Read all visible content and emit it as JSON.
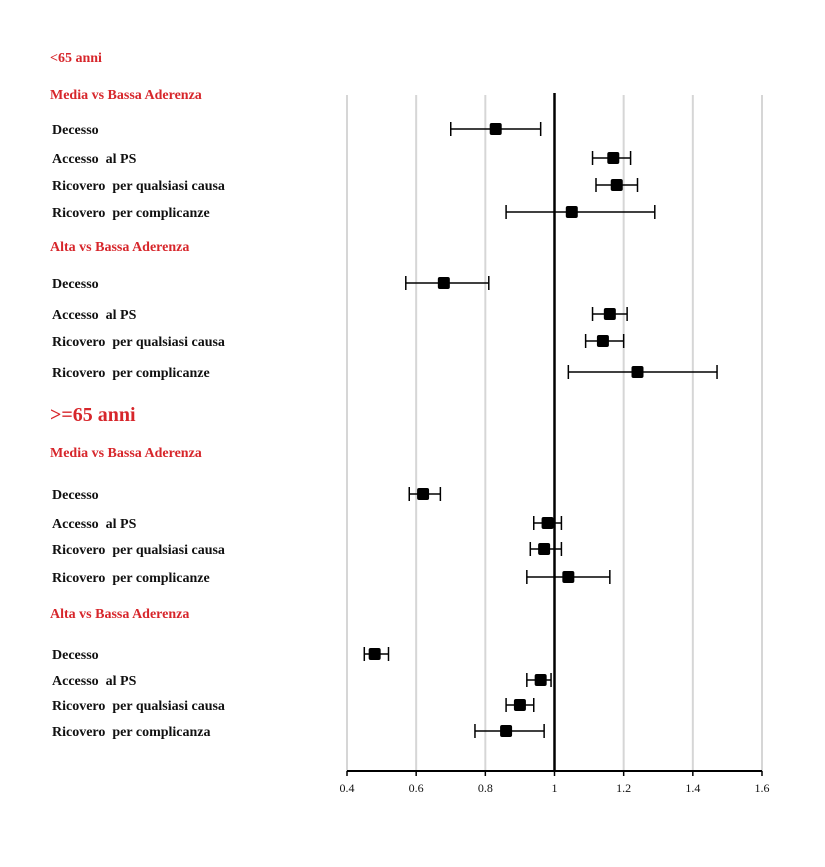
{
  "chart_data": {
    "type": "forest",
    "x_axis": {
      "xlim": [
        0.4,
        1.6
      ],
      "ticks": [
        0.4,
        0.6,
        0.8,
        1,
        1.2,
        1.4,
        1.6
      ],
      "tick_labels": [
        "0.4",
        "0.6",
        "0.8",
        "1",
        "1.2",
        "1.4",
        "1.6"
      ],
      "reference_line": 1,
      "grid": true
    },
    "sections": [
      {
        "age_label": "<65 anni",
        "groups": [
          {
            "label": "Media vs Bassa Aderenza",
            "rows": [
              {
                "label": "Decesso",
                "estimate": 0.83,
                "ci_low": 0.7,
                "ci_high": 0.96
              },
              {
                "label": "Accesso  al PS",
                "estimate": 1.17,
                "ci_low": 1.11,
                "ci_high": 1.22
              },
              {
                "label": "Ricovero  per qualsiasi causa",
                "estimate": 1.18,
                "ci_low": 1.12,
                "ci_high": 1.24
              },
              {
                "label": "Ricovero  per complicanze",
                "estimate": 1.05,
                "ci_low": 0.86,
                "ci_high": 1.29
              }
            ]
          },
          {
            "label": "Alta vs Bassa Aderenza",
            "rows": [
              {
                "label": "Decesso",
                "estimate": 0.68,
                "ci_low": 0.57,
                "ci_high": 0.81
              },
              {
                "label": "Accesso  al PS",
                "estimate": 1.16,
                "ci_low": 1.11,
                "ci_high": 1.21
              },
              {
                "label": "Ricovero  per qualsiasi causa",
                "estimate": 1.14,
                "ci_low": 1.09,
                "ci_high": 1.2
              },
              {
                "label": "Ricovero  per complicanze",
                "estimate": 1.24,
                "ci_low": 1.04,
                "ci_high": 1.47
              }
            ]
          }
        ]
      },
      {
        "age_label": ">=65 anni",
        "groups": [
          {
            "label": "Media vs Bassa Aderenza",
            "rows": [
              {
                "label": "Decesso",
                "estimate": 0.62,
                "ci_low": 0.58,
                "ci_high": 0.67
              },
              {
                "label": "Accesso  al PS",
                "estimate": 0.98,
                "ci_low": 0.94,
                "ci_high": 1.02
              },
              {
                "label": "Ricovero  per qualsiasi causa",
                "estimate": 0.97,
                "ci_low": 0.93,
                "ci_high": 1.02
              },
              {
                "label": "Ricovero  per complicanze",
                "estimate": 1.04,
                "ci_low": 0.92,
                "ci_high": 1.16
              }
            ]
          },
          {
            "label": "Alta vs Bassa Aderenza",
            "rows": [
              {
                "label": "Decesso",
                "estimate": 0.48,
                "ci_low": 0.45,
                "ci_high": 0.52
              },
              {
                "label": "Accesso  al PS",
                "estimate": 0.96,
                "ci_low": 0.92,
                "ci_high": 0.99
              },
              {
                "label": "Ricovero  per qualsiasi causa",
                "estimate": 0.9,
                "ci_low": 0.86,
                "ci_high": 0.94
              },
              {
                "label": "Ricovero  per complicanza",
                "estimate": 0.86,
                "ci_low": 0.77,
                "ci_high": 0.97
              }
            ]
          }
        ]
      }
    ],
    "colors": {
      "heading": "#d7262b",
      "marker": "#000000",
      "grid": "#d6d6d6",
      "text": "#111111"
    }
  }
}
